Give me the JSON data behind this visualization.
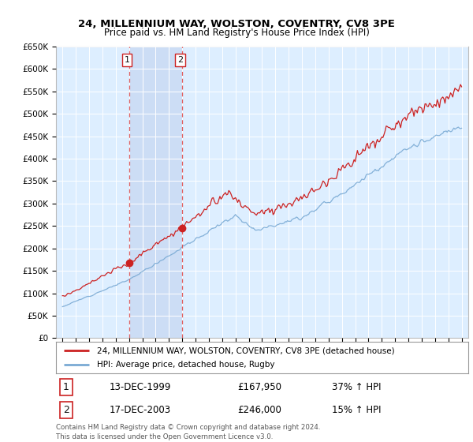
{
  "title1": "24, MILLENNIUM WAY, WOLSTON, COVENTRY, CV8 3PE",
  "title2": "Price paid vs. HM Land Registry's House Price Index (HPI)",
  "ylabel_ticks": [
    "£0",
    "£50K",
    "£100K",
    "£150K",
    "£200K",
    "£250K",
    "£300K",
    "£350K",
    "£400K",
    "£450K",
    "£500K",
    "£550K",
    "£600K",
    "£650K"
  ],
  "ytick_values": [
    0,
    50000,
    100000,
    150000,
    200000,
    250000,
    300000,
    350000,
    400000,
    450000,
    500000,
    550000,
    600000,
    650000
  ],
  "xlim_start": 1994.5,
  "xlim_end": 2025.5,
  "ylim_min": 0,
  "ylim_max": 650000,
  "purchase1_year": 2000.0,
  "purchase1_price": 167950,
  "purchase1_label": "1",
  "purchase1_date": "13-DEC-1999",
  "purchase1_hpi": "37% ↑ HPI",
  "purchase2_year": 2004.0,
  "purchase2_price": 246000,
  "purchase2_label": "2",
  "purchase2_date": "17-DEC-2003",
  "purchase2_hpi": "15% ↑ HPI",
  "legend_line1": "24, MILLENNIUM WAY, WOLSTON, COVENTRY, CV8 3PE (detached house)",
  "legend_line2": "HPI: Average price, detached house, Rugby",
  "footer1": "Contains HM Land Registry data © Crown copyright and database right 2024.",
  "footer2": "This data is licensed under the Open Government Licence v3.0.",
  "price_line_color": "#cc2222",
  "hpi_line_color": "#7aaad4",
  "background_color": "#ddeeff",
  "shade_color": "#ccddf5",
  "vline_color": "#dd4444",
  "marker_color": "#cc2222",
  "label_text_color": "#111111",
  "label_border_color": "#cc2222",
  "grid_color": "#ffffff"
}
